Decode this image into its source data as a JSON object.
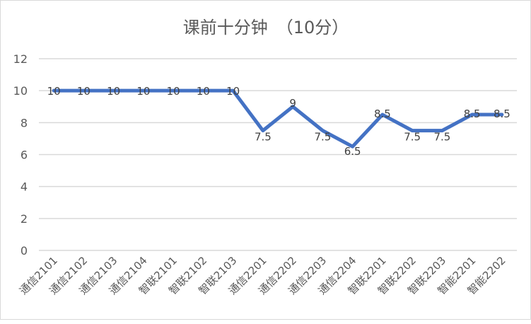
{
  "chart_data": {
    "type": "line",
    "title": "课前十分钟　（10分）",
    "xlabel": "",
    "ylabel": "",
    "categories": [
      "通信2101",
      "通信2102",
      "通信2103",
      "通信2104",
      "智联2101",
      "智联2102",
      "智联2103",
      "通信2201",
      "通信2202",
      "通信2203",
      "通信2204",
      "智联2201",
      "智联2202",
      "智联2203",
      "智能2201",
      "智能2202"
    ],
    "series": [
      {
        "name": "课前十分钟",
        "values": [
          10,
          10,
          10,
          10,
          10,
          10,
          10,
          7.5,
          9,
          7.5,
          6.5,
          8.5,
          7.5,
          7.5,
          8.5,
          8.5
        ],
        "color": "#4472c4"
      }
    ],
    "data_labels": [
      "10",
      "10",
      "10",
      "10",
      "10",
      "10",
      "10",
      "7.5",
      "9",
      "7.5",
      "6.5",
      "8.5",
      "7.5",
      "7.5",
      "8.5",
      "8.5"
    ],
    "ylim": [
      0,
      12
    ],
    "yticks": [
      "0",
      "2",
      "4",
      "6",
      "8",
      "10",
      "12"
    ],
    "grid": true,
    "legend": "none"
  }
}
